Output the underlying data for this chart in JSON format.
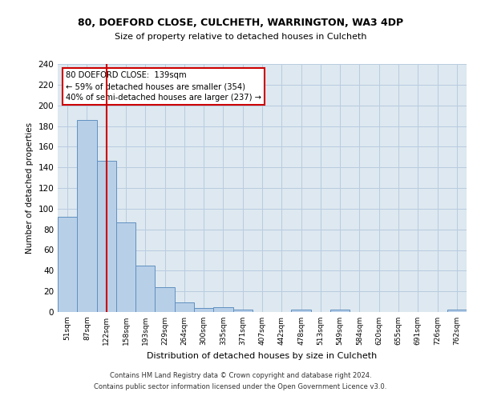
{
  "title_line1": "80, DOEFORD CLOSE, CULCHETH, WARRINGTON, WA3 4DP",
  "title_line2": "Size of property relative to detached houses in Culcheth",
  "xlabel": "Distribution of detached houses by size in Culcheth",
  "ylabel": "Number of detached properties",
  "bar_labels": [
    "51sqm",
    "87sqm",
    "122sqm",
    "158sqm",
    "193sqm",
    "229sqm",
    "264sqm",
    "300sqm",
    "335sqm",
    "371sqm",
    "407sqm",
    "442sqm",
    "478sqm",
    "513sqm",
    "549sqm",
    "584sqm",
    "620sqm",
    "655sqm",
    "691sqm",
    "726sqm",
    "762sqm"
  ],
  "bar_values": [
    92,
    186,
    146,
    87,
    45,
    24,
    9,
    4,
    5,
    2,
    0,
    0,
    2,
    0,
    2,
    0,
    0,
    0,
    0,
    0,
    2
  ],
  "bar_color": "#b8cfe8",
  "bar_edge_color": "#6090c0",
  "vline_x": 2,
  "vline_color": "#cc0000",
  "annotation_text": "80 DOEFORD CLOSE:  139sqm\n← 59% of detached houses are smaller (354)\n40% of semi-detached houses are larger (237) →",
  "annotation_box_color": "#cc0000",
  "footer_line1": "Contains HM Land Registry data © Crown copyright and database right 2024.",
  "footer_line2": "Contains public sector information licensed under the Open Government Licence v3.0.",
  "ylim": [
    0,
    240
  ],
  "yticks": [
    0,
    20,
    40,
    60,
    80,
    100,
    120,
    140,
    160,
    180,
    200,
    220,
    240
  ],
  "bg_color": "#ffffff",
  "axes_bg_color": "#dde8f0",
  "grid_color": "#b8cce0",
  "fig_width": 6.0,
  "fig_height": 5.0
}
